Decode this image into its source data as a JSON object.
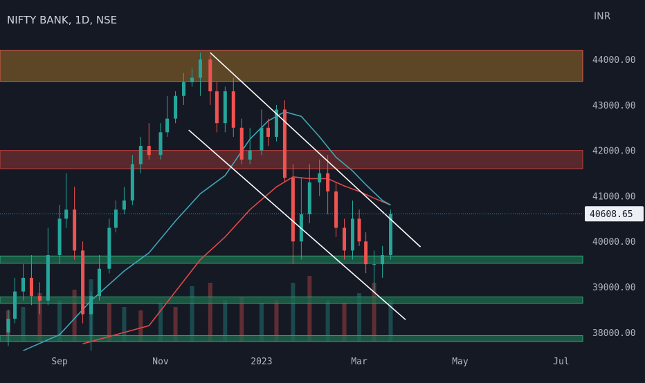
{
  "chart_title": "NIFTY BANK, 1D, NSE",
  "currency_label": "INR",
  "last_price_label": "40608.65",
  "colors": {
    "background": "#151924",
    "up": "#26a69a",
    "down": "#ef5350",
    "ma_short": "#3fa7b8",
    "ma_long": "#e04848",
    "trendline": "#ffffff",
    "resistance_zone_top": "#7a5a28",
    "resistance_zone_mid": "#6e2f30",
    "support_zone": "#1e6b4e",
    "axis_text": "#b2b5be"
  },
  "chart_data": {
    "type": "candlestick",
    "symbol": "NIFTY BANK",
    "interval": "1D",
    "exchange": "NSE",
    "y_axis": {
      "ticks": [
        38000,
        39000,
        40000,
        41000,
        42000,
        43000,
        44000
      ],
      "tick_labels": [
        "38000.00",
        "39000.00",
        "40000.00",
        "41000.00",
        "42000.00",
        "43000.00",
        "44000.00"
      ],
      "range": [
        37800,
        44700
      ]
    },
    "x_axis": {
      "tick_labels": [
        "Sep",
        "Nov",
        "2023",
        "Mar",
        "May",
        "Jul"
      ],
      "tick_dates": [
        "2022-09-01",
        "2022-11-01",
        "2023-01-01",
        "2023-03-01",
        "2023-05-01",
        "2023-07-01"
      ],
      "range": [
        "2022-07-27",
        "2023-07-14"
      ]
    },
    "last_price": 40608.65,
    "zones": [
      {
        "kind": "resistance",
        "from": 43520,
        "to": 44200,
        "start": "2022-07-27"
      },
      {
        "kind": "resistance",
        "from": 41600,
        "to": 42000,
        "start": "2022-07-27"
      },
      {
        "kind": "support",
        "from": 39520,
        "to": 39680,
        "start": "2022-07-27"
      },
      {
        "kind": "support",
        "from": 38640,
        "to": 38780,
        "start": "2022-07-27"
      },
      {
        "kind": "support",
        "from": 37800,
        "to": 37930,
        "start": "2022-07-27"
      }
    ],
    "trendlines": [
      {
        "start": [
          "2022-12-01",
          44150
        ],
        "end": [
          "2023-04-07",
          39880
        ]
      },
      {
        "start": [
          "2022-11-18",
          42450
        ],
        "end": [
          "2023-03-29",
          38280
        ]
      }
    ],
    "ma_short": {
      "dates": [
        "2022-08-10",
        "2022-09-01",
        "2022-09-20",
        "2022-10-10",
        "2022-10-25",
        "2022-11-10",
        "2022-11-25",
        "2022-12-10",
        "2022-12-25",
        "2023-01-05",
        "2023-01-15",
        "2023-01-25",
        "2023-02-05",
        "2023-02-15",
        "2023-02-25",
        "2023-03-05",
        "2023-03-15",
        "2023-03-20"
      ],
      "values": [
        37600,
        37950,
        38700,
        39350,
        39750,
        40450,
        41050,
        41450,
        42250,
        42650,
        42850,
        42750,
        42300,
        41850,
        41550,
        41250,
        40900,
        40800
      ]
    },
    "ma_long": {
      "dates": [
        "2022-09-15",
        "2022-10-05",
        "2022-10-25",
        "2022-11-10",
        "2022-11-25",
        "2022-12-10",
        "2022-12-25",
        "2023-01-10",
        "2023-01-20",
        "2023-01-30",
        "2023-02-10",
        "2023-02-20",
        "2023-03-01",
        "2023-03-10",
        "2023-03-20"
      ],
      "values": [
        37750,
        37950,
        38150,
        38900,
        39600,
        40100,
        40700,
        41200,
        41420,
        41380,
        41380,
        41220,
        41100,
        40950,
        40800
      ]
    },
    "candles": {
      "dates": [
        "2022-08-01",
        "2022-08-05",
        "2022-08-10",
        "2022-08-15",
        "2022-08-20",
        "2022-08-25",
        "2022-09-01",
        "2022-09-05",
        "2022-09-10",
        "2022-09-15",
        "2022-09-20",
        "2022-09-25",
        "2022-10-01",
        "2022-10-05",
        "2022-10-10",
        "2022-10-15",
        "2022-10-20",
        "2022-10-25",
        "2022-11-01",
        "2022-11-05",
        "2022-11-10",
        "2022-11-15",
        "2022-11-20",
        "2022-11-25",
        "2022-12-01",
        "2022-12-05",
        "2022-12-10",
        "2022-12-15",
        "2022-12-20",
        "2022-12-25",
        "2023-01-01",
        "2023-01-05",
        "2023-01-10",
        "2023-01-15",
        "2023-01-20",
        "2023-01-25",
        "2023-01-30",
        "2023-02-05",
        "2023-02-10",
        "2023-02-15",
        "2023-02-20",
        "2023-02-25",
        "2023-03-01",
        "2023-03-05",
        "2023-03-10",
        "2023-03-15",
        "2023-03-20"
      ],
      "open": [
        38000,
        38300,
        38900,
        39200,
        38800,
        38700,
        39700,
        40500,
        40700,
        39800,
        38400,
        38800,
        39400,
        40300,
        40700,
        40900,
        41700,
        42100,
        41900,
        42400,
        42700,
        43200,
        43500,
        43600,
        44000,
        43300,
        42600,
        43300,
        42500,
        41800,
        42000,
        42500,
        42300,
        42900,
        41400,
        40000,
        40600,
        41300,
        41500,
        41100,
        40300,
        39800,
        40500,
        40000,
        39500,
        39500,
        39700
      ],
      "high": [
        38500,
        39200,
        39500,
        39700,
        39100,
        40300,
        40800,
        41500,
        41200,
        40000,
        38900,
        39700,
        40500,
        40900,
        41200,
        41900,
        42300,
        42600,
        42600,
        43200,
        43300,
        43700,
        43800,
        44150,
        44100,
        43500,
        43400,
        43600,
        42700,
        42500,
        42900,
        42700,
        43000,
        43100,
        41700,
        41400,
        41700,
        41800,
        41900,
        41300,
        40500,
        40900,
        40700,
        40200,
        39800,
        39900,
        40700
      ],
      "low": [
        37700,
        38200,
        38700,
        38600,
        38400,
        38600,
        39500,
        40300,
        39600,
        38200,
        37600,
        38700,
        39300,
        40200,
        40600,
        40800,
        41500,
        41800,
        41800,
        42300,
        42600,
        43000,
        43400,
        43200,
        43000,
        42400,
        42400,
        42300,
        41700,
        41700,
        41900,
        42100,
        42200,
        41300,
        39500,
        39600,
        40400,
        41000,
        40600,
        40100,
        39600,
        39600,
        39900,
        39300,
        38900,
        39200,
        39600
      ],
      "close": [
        38300,
        38900,
        39200,
        38800,
        38700,
        39700,
        40500,
        40700,
        39800,
        38400,
        38800,
        39400,
        40300,
        40700,
        40900,
        41700,
        42100,
        41900,
        42400,
        42700,
        43200,
        43500,
        43600,
        44000,
        43300,
        42600,
        43300,
        42500,
        41800,
        42000,
        42500,
        42300,
        42900,
        41400,
        40000,
        40600,
        41300,
        41500,
        41100,
        40300,
        39800,
        40500,
        40000,
        39500,
        39500,
        39700,
        40608.65
      ]
    },
    "volume": {
      "dates": [
        "2022-08-01",
        "2022-08-10",
        "2022-08-20",
        "2022-09-01",
        "2022-09-10",
        "2022-09-20",
        "2022-10-01",
        "2022-10-10",
        "2022-10-20",
        "2022-11-01",
        "2022-11-10",
        "2022-11-20",
        "2022-12-01",
        "2022-12-10",
        "2022-12-20",
        "2023-01-01",
        "2023-01-10",
        "2023-01-20",
        "2023-01-30",
        "2023-02-10",
        "2023-02-20",
        "2023-03-01",
        "2023-03-10",
        "2023-03-20"
      ],
      "relative": [
        0.45,
        0.5,
        0.7,
        0.6,
        0.75,
        0.9,
        0.55,
        0.5,
        0.45,
        0.55,
        0.5,
        0.8,
        0.85,
        0.6,
        0.65,
        0.55,
        0.6,
        0.85,
        0.95,
        0.6,
        0.55,
        0.7,
        0.85,
        0.6
      ]
    }
  }
}
